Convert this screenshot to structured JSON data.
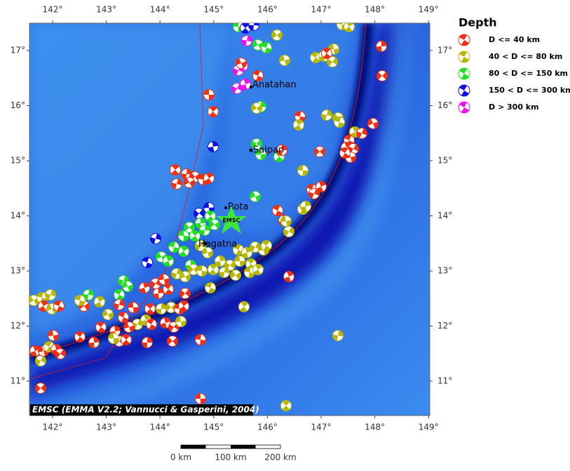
{
  "map": {
    "lon_labels": [
      "142°",
      "143°",
      "144°",
      "145°",
      "146°",
      "147°",
      "148°",
      "149°"
    ],
    "lat_labels": [
      "11°",
      "12°",
      "13°",
      "14°",
      "15°",
      "16°",
      "17°"
    ],
    "places": [
      "Anatahan",
      "Saipan",
      "Rota",
      "Hagatna"
    ],
    "star_label": "EMSC",
    "credit": "EMSC (EMMA V2.2; Vannucci & Gasperini, 2004)",
    "scale_labels": [
      "0 km",
      "100 km",
      "200 km"
    ]
  },
  "legend": {
    "title": "Depth",
    "items": [
      {
        "label": "D <= 40 km",
        "color": "#f03010"
      },
      {
        "label": "40 < D <= 80 km",
        "color": "#b8b800"
      },
      {
        "label": "80 < D <= 150 km",
        "color": "#20e020"
      },
      {
        "label": "150 < D <= 300 km",
        "color": "#1010e0"
      },
      {
        "label": "D > 300 km",
        "color": "#f010f0"
      }
    ]
  }
}
